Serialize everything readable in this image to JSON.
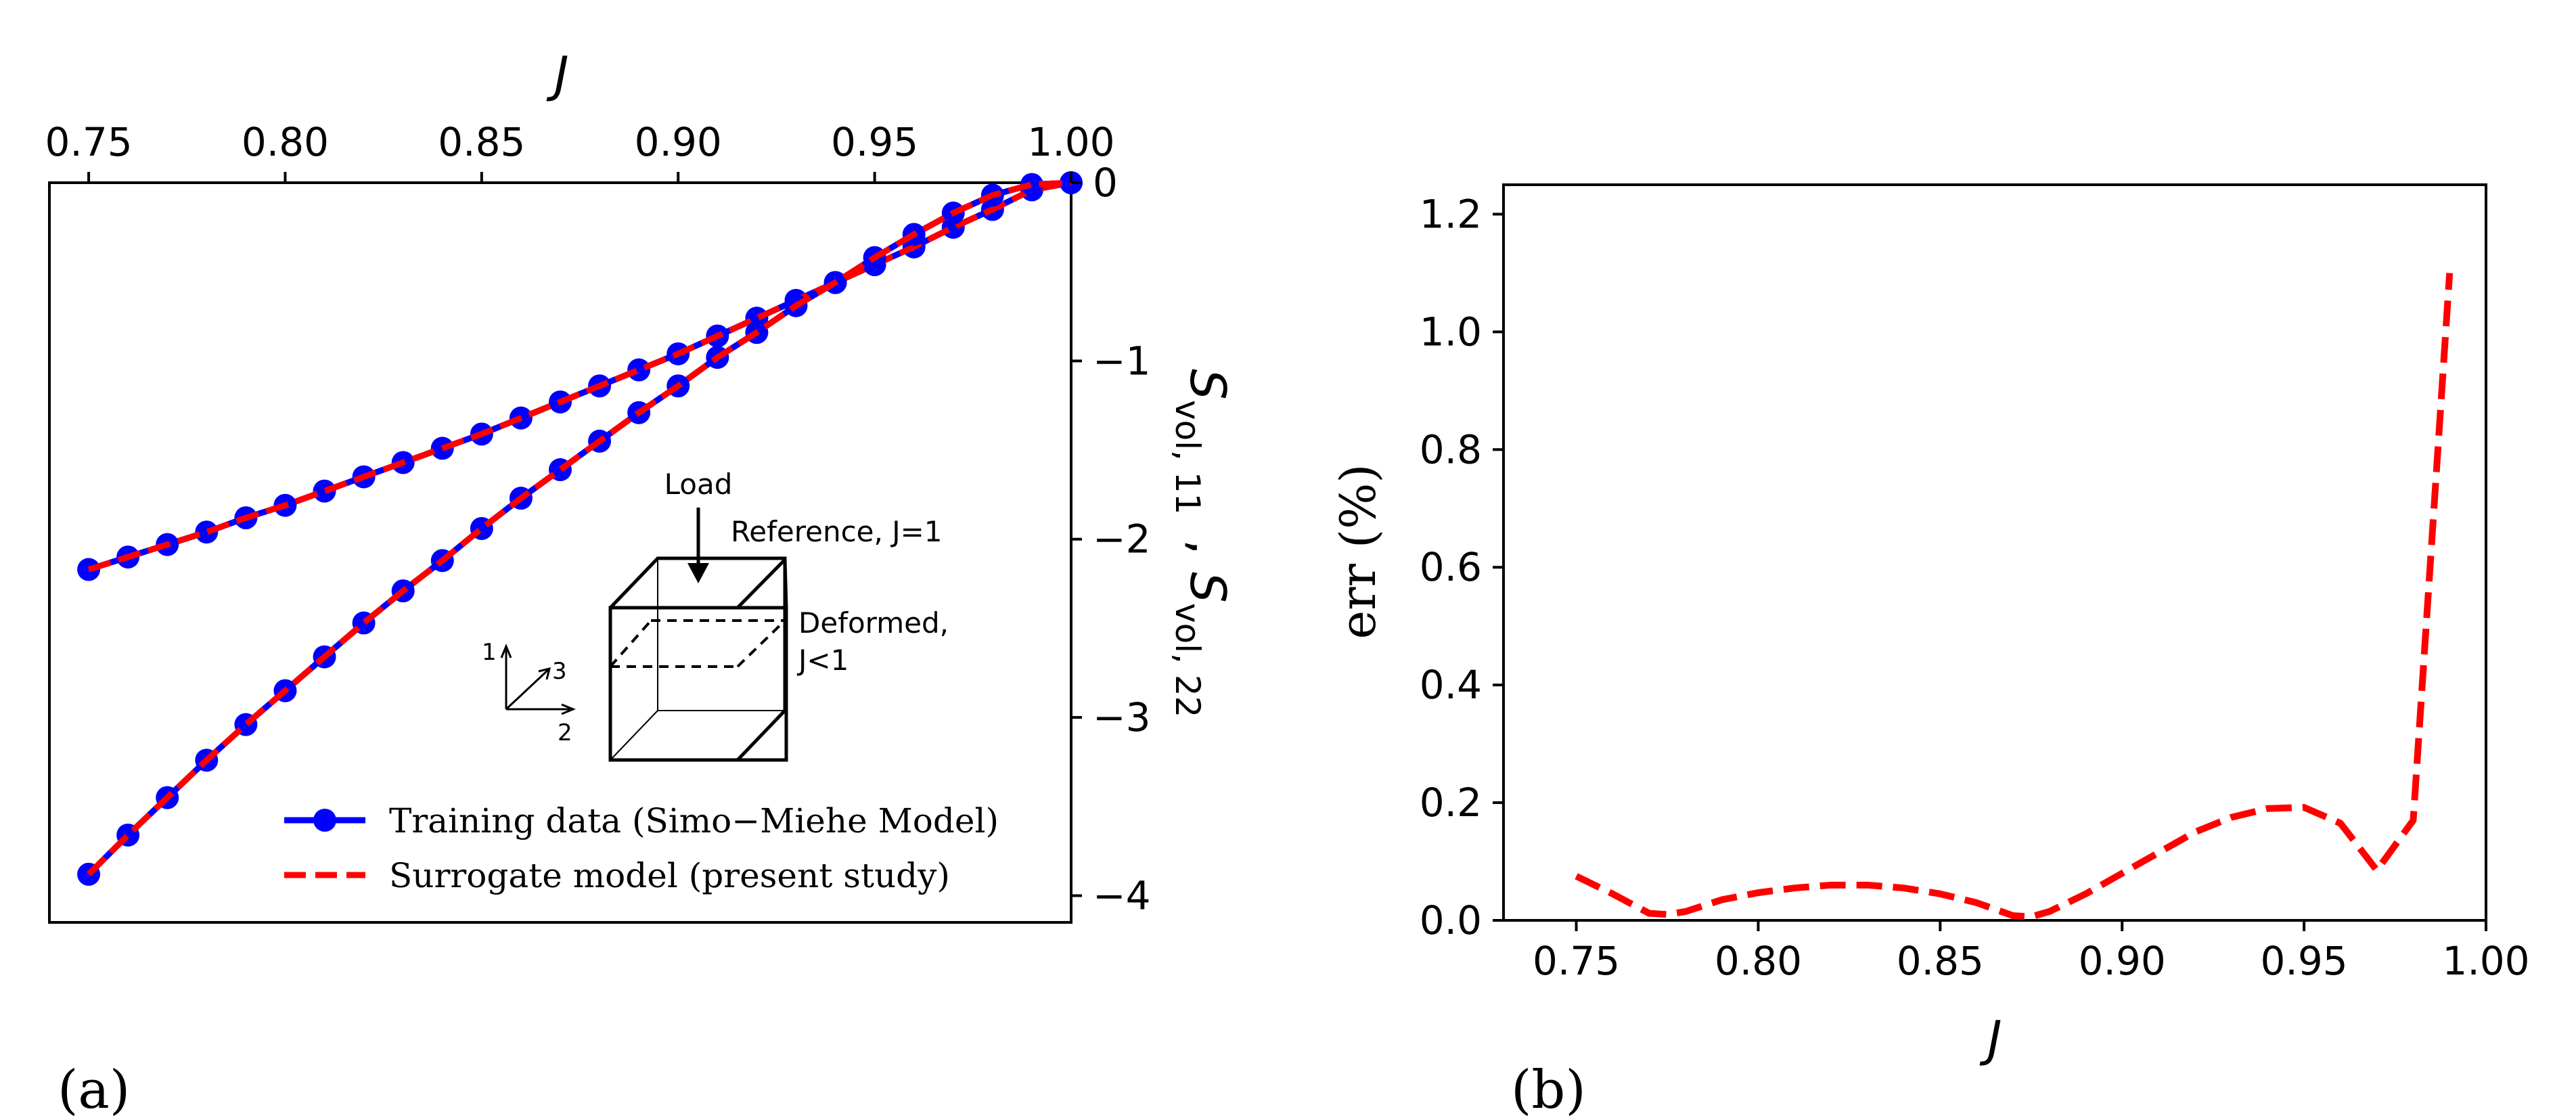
{
  "chart_data": [
    {
      "panel_label": "(a)",
      "type": "line",
      "xlabel": "J",
      "ylabel_parts": {
        "main": "S",
        "sub1": "vol, 11",
        "sep": ", ",
        "sub2": "vol, 22"
      },
      "xlim": [
        0.74,
        1.0
      ],
      "ylim": [
        -4.15,
        0
      ],
      "x_axis_position": "top",
      "y_axis_position": "right",
      "x_ticks": [
        "0.75",
        "0.80",
        "0.85",
        "0.90",
        "0.95",
        "1.00"
      ],
      "y_ticks": [
        "0",
        "−1",
        "−2",
        "−3",
        "−4"
      ],
      "legend_position": "lower-right",
      "series": [
        {
          "name": "Training data (Simo−Miehe Model)",
          "color": "#0000ff",
          "style": "solid-markers",
          "x": [
            0.75,
            0.76,
            0.77,
            0.78,
            0.79,
            0.8,
            0.81,
            0.82,
            0.83,
            0.84,
            0.85,
            0.86,
            0.87,
            0.88,
            0.89,
            0.9,
            0.91,
            0.92,
            0.93,
            0.94,
            0.95,
            0.96,
            0.97,
            0.98,
            0.99,
            1.0
          ],
          "y_upper": [
            -2.17,
            -2.1,
            -2.03,
            -1.96,
            -1.88,
            -1.81,
            -1.73,
            -1.65,
            -1.57,
            -1.49,
            -1.41,
            -1.32,
            -1.23,
            -1.14,
            -1.05,
            -0.96,
            -0.86,
            -0.76,
            -0.66,
            -0.56,
            -0.46,
            -0.36,
            -0.25,
            -0.15,
            -0.04,
            0.0
          ],
          "y_lower": [
            -3.88,
            -3.66,
            -3.45,
            -3.24,
            -3.04,
            -2.85,
            -2.66,
            -2.47,
            -2.29,
            -2.12,
            -1.94,
            -1.77,
            -1.61,
            -1.45,
            -1.29,
            -1.14,
            -0.98,
            -0.84,
            -0.69,
            -0.56,
            -0.42,
            -0.29,
            -0.17,
            -0.07,
            -0.01,
            0.0
          ]
        },
        {
          "name": "Surrogate model (present study)",
          "color": "#ff0000",
          "style": "dashed"
        }
      ],
      "inset": {
        "load_label": "Load",
        "reference_label": "Reference, J=1",
        "deformed_label_1": "Deformed,",
        "deformed_label_2": "J<1",
        "axis_1": "1",
        "axis_2": "2",
        "axis_3": "3"
      }
    },
    {
      "panel_label": "(b)",
      "type": "line",
      "xlabel": "J",
      "ylabel": "err (%)",
      "xlim": [
        0.73,
        1.0
      ],
      "ylim": [
        0,
        1.25
      ],
      "x_ticks": [
        "0.75",
        "0.80",
        "0.85",
        "0.90",
        "0.95",
        "1.00"
      ],
      "y_ticks": [
        "0.0",
        "0.2",
        "0.4",
        "0.6",
        "0.8",
        "1.0",
        "1.2"
      ],
      "series": [
        {
          "color": "#ff0000",
          "style": "dashed",
          "x": [
            0.75,
            0.76,
            0.77,
            0.775,
            0.78,
            0.79,
            0.8,
            0.81,
            0.82,
            0.83,
            0.84,
            0.85,
            0.86,
            0.87,
            0.875,
            0.88,
            0.89,
            0.9,
            0.91,
            0.92,
            0.93,
            0.94,
            0.95,
            0.96,
            0.97,
            0.98,
            0.99
          ],
          "y": [
            0.075,
            0.045,
            0.012,
            0.01,
            0.015,
            0.035,
            0.047,
            0.055,
            0.06,
            0.06,
            0.055,
            0.045,
            0.03,
            0.008,
            0.006,
            0.015,
            0.045,
            0.08,
            0.115,
            0.15,
            0.175,
            0.19,
            0.192,
            0.165,
            0.085,
            0.17,
            1.1
          ]
        }
      ]
    }
  ]
}
